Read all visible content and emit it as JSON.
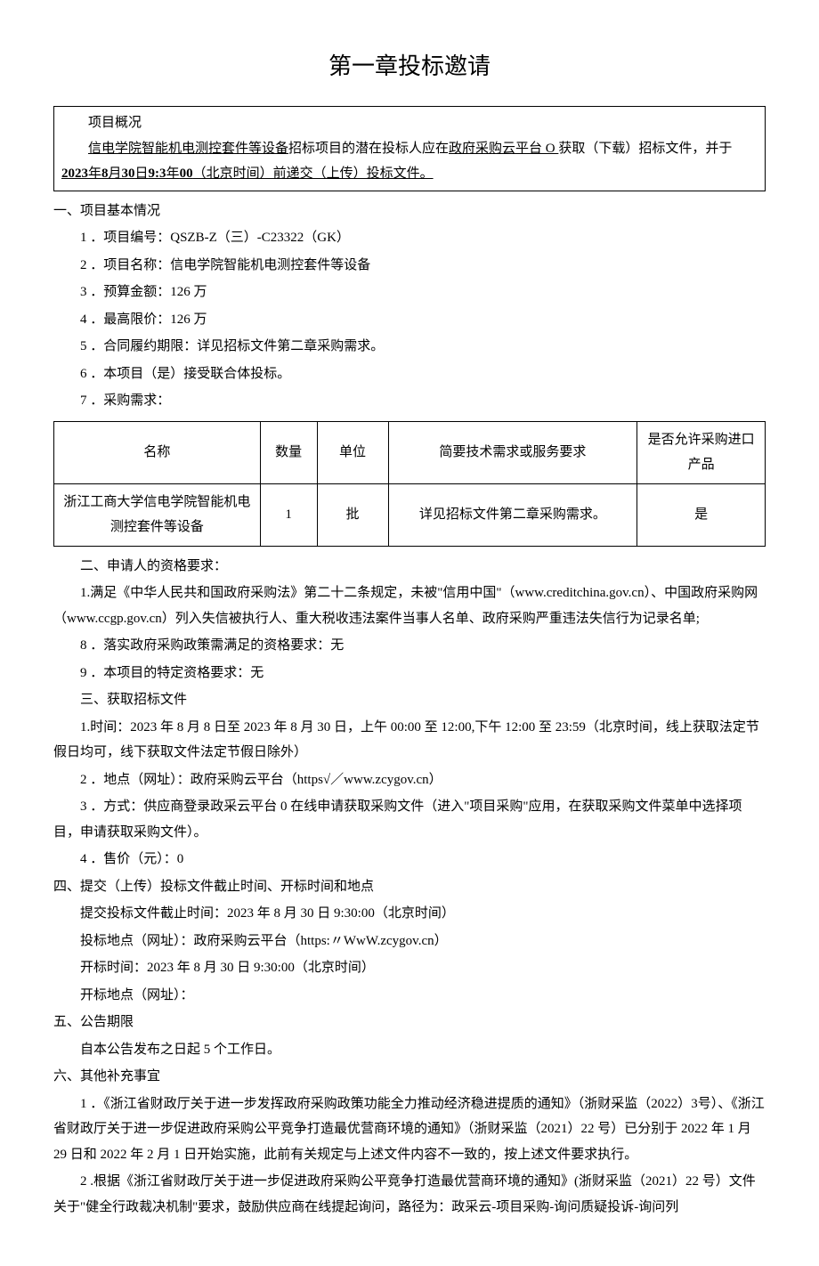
{
  "chapter_title": "第一章投标邀请",
  "overview": {
    "label": "项目概况",
    "text_prefix": "信电学院智能机电测控套件等设备",
    "text_mid1": "招标项目的潜在投标人应在",
    "platform": "政府采购云平台 O ",
    "text_mid2": "获取（下载）招标文件，并于",
    "deadline_date": "2023",
    "deadline_year_label": "年",
    "deadline_month": "8",
    "deadline_month_label": "月",
    "deadline_day": "30",
    "deadline_day_label": "日",
    "deadline_time": "9:3",
    "deadline_time_label": "年",
    "deadline_min": "00",
    "deadline_tz": "（北京时间）前递交（上传）投标文件。"
  },
  "section1": {
    "heading": "一、项目基本情况",
    "items": {
      "item1": "1 ．项目编号：QSZB-Z（三）-C23322（GK）",
      "item2": "2 ．项目名称：信电学院智能机电测控套件等设备",
      "item3": "3 ．预算金额：126 万",
      "item4": "4 ．最高限价：126 万",
      "item5": "5 ．合同履约期限：详见招标文件第二章采购需求。",
      "item6": "6 ．本项目（是）接受联合体投标。",
      "item7": "7 ．采购需求："
    },
    "table": {
      "headers": {
        "name": "名称",
        "qty": "数量",
        "unit": "单位",
        "req": "简要技术需求或服务要求",
        "import": "是否允许采购进口产品"
      },
      "row1": {
        "name": "浙江工商大学信电学院智能机电测控套件等设备",
        "qty": "1",
        "unit": "批",
        "req": "详见招标文件第二章采购需求。",
        "import": "是"
      }
    }
  },
  "section2": {
    "heading": "二、申请人的资格要求：",
    "item1": "1.满足《中华人民共和国政府采购法》第二十二条规定，未被\"信用中国\"（www.creditchina.gov.cn）、中国政府采购网（www.ccgp.gov.cn）列入失信被执行人、重大税收违法案件当事人名单、政府采购严重违法失信行为记录名单;",
    "item8": "8 ．落实政府采购政策需满足的资格要求：无",
    "item9": "9 ．本项目的特定资格要求：无"
  },
  "section3": {
    "heading": "三、获取招标文件",
    "item1": "1.时间：2023 年 8 月 8 日至 2023 年 8 月 30 日，上午 00:00 至 12:00,下午 12:00 至 23:59（北京时间，线上获取法定节假日均可，线下获取文件法定节假日除外）",
    "item2": "2 ．地点（网址）：政府采购云平台（https√／www.zcygov.cn）",
    "item3": "3 ．方式：供应商登录政采云平台 0 在线申请获取采购文件（进入\"项目采购\"应用，在获取采购文件菜单中选择项目，申请获取采购文件）。",
    "item4": "4 ．售价（元）：0"
  },
  "section4": {
    "heading": "四、提交（上传）投标文件截止时间、开标时间和地点",
    "line1": "提交投标文件截止时间：2023 年 8 月 30 日 9:30:00（北京时间）",
    "line2": "投标地点（网址）：政府采购云平台（https:〃WwW.zcygov.cn）",
    "line3": "开标时间：2023 年 8 月 30 日 9:30:00（北京时间）",
    "line4": "开标地点（网址）："
  },
  "section5": {
    "heading": "五、公告期限",
    "line1": "自本公告发布之日起 5 个工作日。"
  },
  "section6": {
    "heading": "六、其他补充事宜",
    "item1": "1 ．《浙江省财政厅关于进一步发挥政府采购政策功能全力推动经济稳进提质的通知》（浙财采监（2022）3号）、《浙江省财政厅关于进一步促进政府采购公平竞争打造最优营商环境的通知》（浙财采监（2021）22 号）已分别于 2022 年 1 月 29 日和 2022 年 2 月 1 日开始实施，此前有关规定与上述文件内容不一致的，按上述文件要求执行。",
    "item2": "2 .根据《浙江省财政厅关于进一步促进政府采购公平竞争打造最优营商环境的通知》(浙财采监（2021）22 号）文件关于\"健全行政裁决机制\"要求，鼓励供应商在线提起询问，路径为：政采云-项目采购-询问质疑投诉-询问列"
  }
}
